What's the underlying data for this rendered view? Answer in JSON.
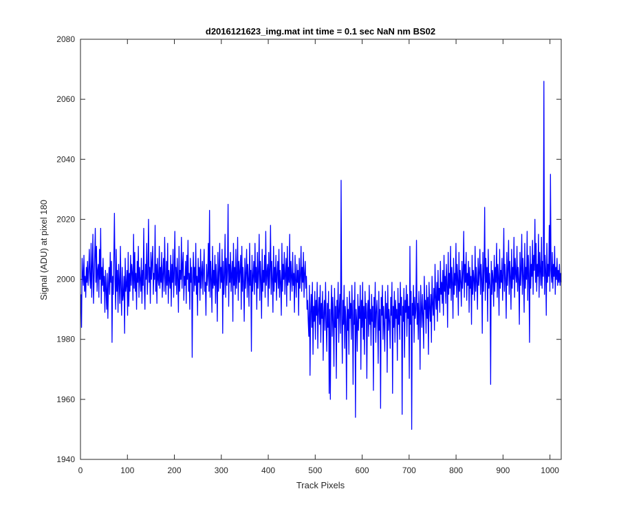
{
  "chart_data": {
    "type": "line",
    "title": "d2016121623_img.mat int time = 0.1 sec  NaN nm BS02",
    "xlabel": "Track Pixels",
    "ylabel": "Signal (ADU) at pixel 180",
    "xlim": [
      0,
      1024
    ],
    "ylim": [
      1940,
      2080
    ],
    "xticks": [
      0,
      100,
      200,
      300,
      400,
      500,
      600,
      700,
      800,
      900,
      1000
    ],
    "yticks": [
      1940,
      1960,
      1980,
      2000,
      2020,
      2040,
      2060,
      2080
    ],
    "grid": false,
    "legend": "none",
    "series_color": "#0000ff",
    "series": [
      {
        "x_start": 1,
        "x_step": 1,
        "count": 1024,
        "values": [
          1995,
          1984,
          2007,
          2002,
          1998,
          2008,
          1996,
          2001,
          1994,
          2004,
          1999,
          2006,
          1998,
          2003,
          2010,
          2000,
          1997,
          2012,
          1994,
          2005,
          2015,
          1992,
          2000,
          2008,
          2017,
          1999,
          2011,
          1996,
          2003,
          2005,
          1994,
          2010,
          2000,
          2017,
          1992,
          2004,
          1998,
          2007,
          1996,
          2001,
          1989,
          2003,
          1997,
          1990,
          2002,
          1987,
          1998,
          2004,
          1995,
          2009,
          1999,
          2006,
          1979,
          2001,
          1995,
          2007,
          2022,
          2000,
          1990,
          2010,
          1996,
          2003,
          1989,
          2005,
          1999,
          1992,
          2011,
          1997,
          1988,
          2004,
          1993,
          1995,
          2001,
          1982,
          2007,
          1996,
          1998,
          2003,
          1988,
          2009,
          1991,
          2002,
          1996,
          2008,
          1998,
          2005,
          2002,
          1993,
          2015,
          1997,
          2009,
          1996,
          2002,
          1990,
          2006,
          1999,
          2011,
          1994,
          2004,
          2000,
          1996,
          2007,
          1992,
          2003,
          1998,
          2017,
          1997,
          1990,
          2005,
          2000,
          2012,
          1995,
          2002,
          2020,
          1999,
          2004,
          1992,
          2009,
          2000,
          2006,
          2011,
          1995,
          2002,
          2000,
          2018,
          1996,
          2005,
          1992,
          2007,
          2000,
          1998,
          2011,
          1997,
          2004,
          1999,
          2009,
          1994,
          2002,
          2007,
          1996,
          2014,
          2001,
          1995,
          2006,
          1998,
          2012,
          1992,
          2003,
          2000,
          1997,
          2008,
          1991,
          2005,
          1999,
          2010,
          1994,
          2002,
          2016,
          1998,
          2004,
          1995,
          2007,
          2000,
          1989,
          2011,
          1996,
          2003,
          2000,
          2014,
          1997,
          2005,
          2009,
          1993,
          2001,
          1998,
          2006,
          1992,
          2008,
          2000,
          2013,
          1996,
          2002,
          1990,
          2007,
          1999,
          2004,
          1974,
          2000,
          2009,
          1996,
          2004,
          1998,
          2012,
          1995,
          2001,
          1988,
          2007,
          1999,
          2004,
          1993,
          2010,
          1997,
          2002,
          2006,
          1995,
          2003,
          2010,
          1996,
          1999,
          1988,
          2005,
          1998,
          2001,
          2012,
          1996,
          2023,
          1994,
          2006,
          2000,
          1989,
          2011,
          1997,
          2003,
          1998,
          2008,
          1992,
          2005,
          2000,
          1986,
          2009,
          1996,
          2002,
          2012,
          1997,
          2004,
          1999,
          2010,
          1982,
          2006,
          1995,
          2001,
          2015,
          1994,
          2007,
          1998,
          2003,
          2025,
          1991,
          2005,
          1999,
          2009,
          1996,
          2002,
          2006,
          1986,
          2012,
          1998,
          2004,
          1995,
          2010,
          1997,
          2001,
          2014,
          1993,
          2006,
          1999,
          2003,
          2008,
          1990,
          2011,
          1996,
          2004,
          1999,
          1986,
          2007,
          1997,
          2002,
          2010,
          1994,
          2005,
          2000,
          1991,
          2012,
          1998,
          2003,
          1976,
          2008,
          1996,
          2001,
          2006,
          1995,
          2012,
          1999,
          2004,
          1990,
          2009,
          1997,
          2002,
          2015,
          1993,
          2006,
          2000,
          1987,
          2010,
          1996,
          2003,
          1999,
          2008,
          1994,
          2016,
          1998,
          2002,
          2005,
          1991,
          2009,
          1997,
          2003,
          2018,
          1995,
          2006,
          2000,
          1989,
          2011,
          1996,
          2004,
          1999,
          2008,
          1993,
          2002,
          2006,
          1997,
          2010,
          1994,
          2003,
          1999,
          1988,
          2012,
          1996,
          2005,
          2000,
          2009,
          1995,
          2002,
          2007,
          1991,
          2011,
          1998,
          2004,
          1999,
          2015,
          1993,
          2006,
          2001,
          1996,
          2009,
          1998,
          2002,
          1989,
          2008,
          2000,
          1994,
          2005,
          1999,
          2003,
          1988,
          2007,
          1997,
          2001,
          2011,
          1996,
          2004,
          1999,
          2009,
          1994,
          2002,
          2006,
          1997,
          2001,
          1990,
          1993,
          1986,
          1981,
          1998,
          1968,
          1989,
          1995,
          1984,
          1999,
          1975,
          1991,
          1986,
          1996,
          1980,
          1993,
          1988,
          1999,
          1977,
          1990,
          1994,
          1985,
          1998,
          1979,
          1992,
          1987,
          1996,
          1973,
          1989,
          1993,
          1983,
          1999,
          1987,
          1976,
          1992,
          1984,
          1996,
          1962,
          1990,
          1960,
          1988,
          1998,
          1981,
          1994,
          1986,
          1971,
          1997,
          1984,
          1991,
          1967,
          1993,
          1987,
          1999,
          1979,
          1990,
          1995,
          1982,
          2033,
          1988,
          1972,
          1993,
          1985,
          1998,
          1977,
          1991,
          1986,
          1960,
          1994,
          1983,
          1990,
          1975,
          1996,
          1987,
          1992,
          1980,
          1998,
          1988,
          1965,
          1993,
          1985,
          1999,
          1954,
          1990,
          1986,
          1976,
          1995,
          1983,
          1991,
          1987,
          1998,
          1970,
          1993,
          1984,
          1999,
          1980,
          1991,
          1975,
          1996,
          1987,
          1992,
          1967,
          1989,
          1993,
          1981,
          1998,
          1985,
          1990,
          1978,
          1995,
          1986,
          1991,
          1963,
          1994,
          1984,
          1999,
          1979,
          1989,
          1993,
          1986,
          1972,
          1996,
          1983,
          1990,
          1957,
          1994,
          1988,
          1998,
          1980,
          1991,
          1985,
          1976,
          1996,
          1987,
          1992,
          1969,
          1998,
          1983,
          1990,
          1986,
          1977,
          1994,
          1988,
          1999,
          1962,
          1991,
          1984,
          1996,
          1979,
          1993,
          1987,
          1990,
          1973,
          1997,
          1985,
          1992,
          1980,
          1999,
          1988,
          1994,
          1955,
          1991,
          1986,
          1997,
          1974,
          1993,
          1989,
          1998,
          1981,
          1995,
          1987,
          1991,
          1967,
          2011,
          1985,
          1996,
          1950,
          1992,
          1988,
          1998,
          1979,
          1994,
          1987,
          1990,
          2013,
          1985,
          1992,
          1980,
          1996,
          1989,
          1970,
          1998,
          1991,
          1984,
          1995,
          1988,
          1977,
          2001,
          1990,
          1993,
          1982,
          1998,
          1987,
          1994,
          1975,
          1999,
          1991,
          1986,
          1995,
          1979,
          2001,
          1992,
          1988,
          1997,
          1983,
          2005,
          1994,
          1990,
          1999,
          1986,
          2003,
          1993,
          1997,
          1989,
          2006,
          1995,
          1999,
          1992,
          2003,
          1988,
          2008,
          1996,
          2001,
          1992,
          2005,
          1998,
          1984,
          2009,
          1995,
          2002,
          1997,
          2011,
          1993,
          2004,
          1999,
          1987,
          2007,
          1995,
          2002,
          1998,
          2012,
          1994,
          2005,
          2000,
          1988,
          2009,
          1996,
          2003,
          1999,
          1991,
          2006,
          1997,
          2002,
          2016,
          1994,
          2005,
          1999,
          2009,
          1993,
          2002,
          1998,
          2006,
          1989,
          2004,
          1997,
          2001,
          1985,
          2008,
          1995,
          2003,
          2000,
          1993,
          2011,
          1996,
          2004,
          1999,
          1990,
          2007,
          1998,
          2002,
          2010,
          1995,
          2005,
          2000,
          1982,
          2009,
          1996,
          2003,
          2024,
          1993,
          2007,
          1999,
          2004,
          1986,
          2010,
          1997,
          2002,
          1998,
          1965,
          2006,
          1995,
          2003,
          2000,
          1991,
          2008,
          1996,
          2004,
          1999,
          2012,
          1994,
          2005,
          2001,
          1988,
          2010,
          1997,
          2003,
          1999,
          2007,
          1993,
          2002,
          2017,
          1996,
          2005,
          2000,
          1987,
          2009,
          1998,
          2003,
          2013,
          1995,
          2006,
          2001,
          1990,
          2010,
          1997,
          2004,
          2000,
          2014,
          1994,
          2007,
          2002,
          1999,
          2011,
          1996,
          2004,
          2000,
          1985,
          2009,
          1998,
          2003,
          2015,
          1995,
          2007,
          2001,
          1989,
          2012,
          1997,
          2004,
          2000,
          2016,
          1993,
          2008,
          2002,
          1979,
          2011,
          1997,
          2005,
          2001,
          2013,
          1995,
          2008,
          2003,
          2020,
          1999,
          2012,
          1996,
          2005,
          2001,
          2015,
          1994,
          2009,
          2003,
          1998,
          2014,
          1997,
          2006,
          2001,
          2066,
          1995,
          2008,
          2003,
          1988,
          2012,
          1999,
          2005,
          2001,
          2018,
          1996,
          2035,
          2003,
          1999,
          2009,
          1997,
          2005,
          2001,
          2011,
          1995,
          2004,
          2000,
          2007,
          1998,
          2003,
          1999,
          2005,
          1998,
          2002,
          1999
        ]
      }
    ]
  }
}
